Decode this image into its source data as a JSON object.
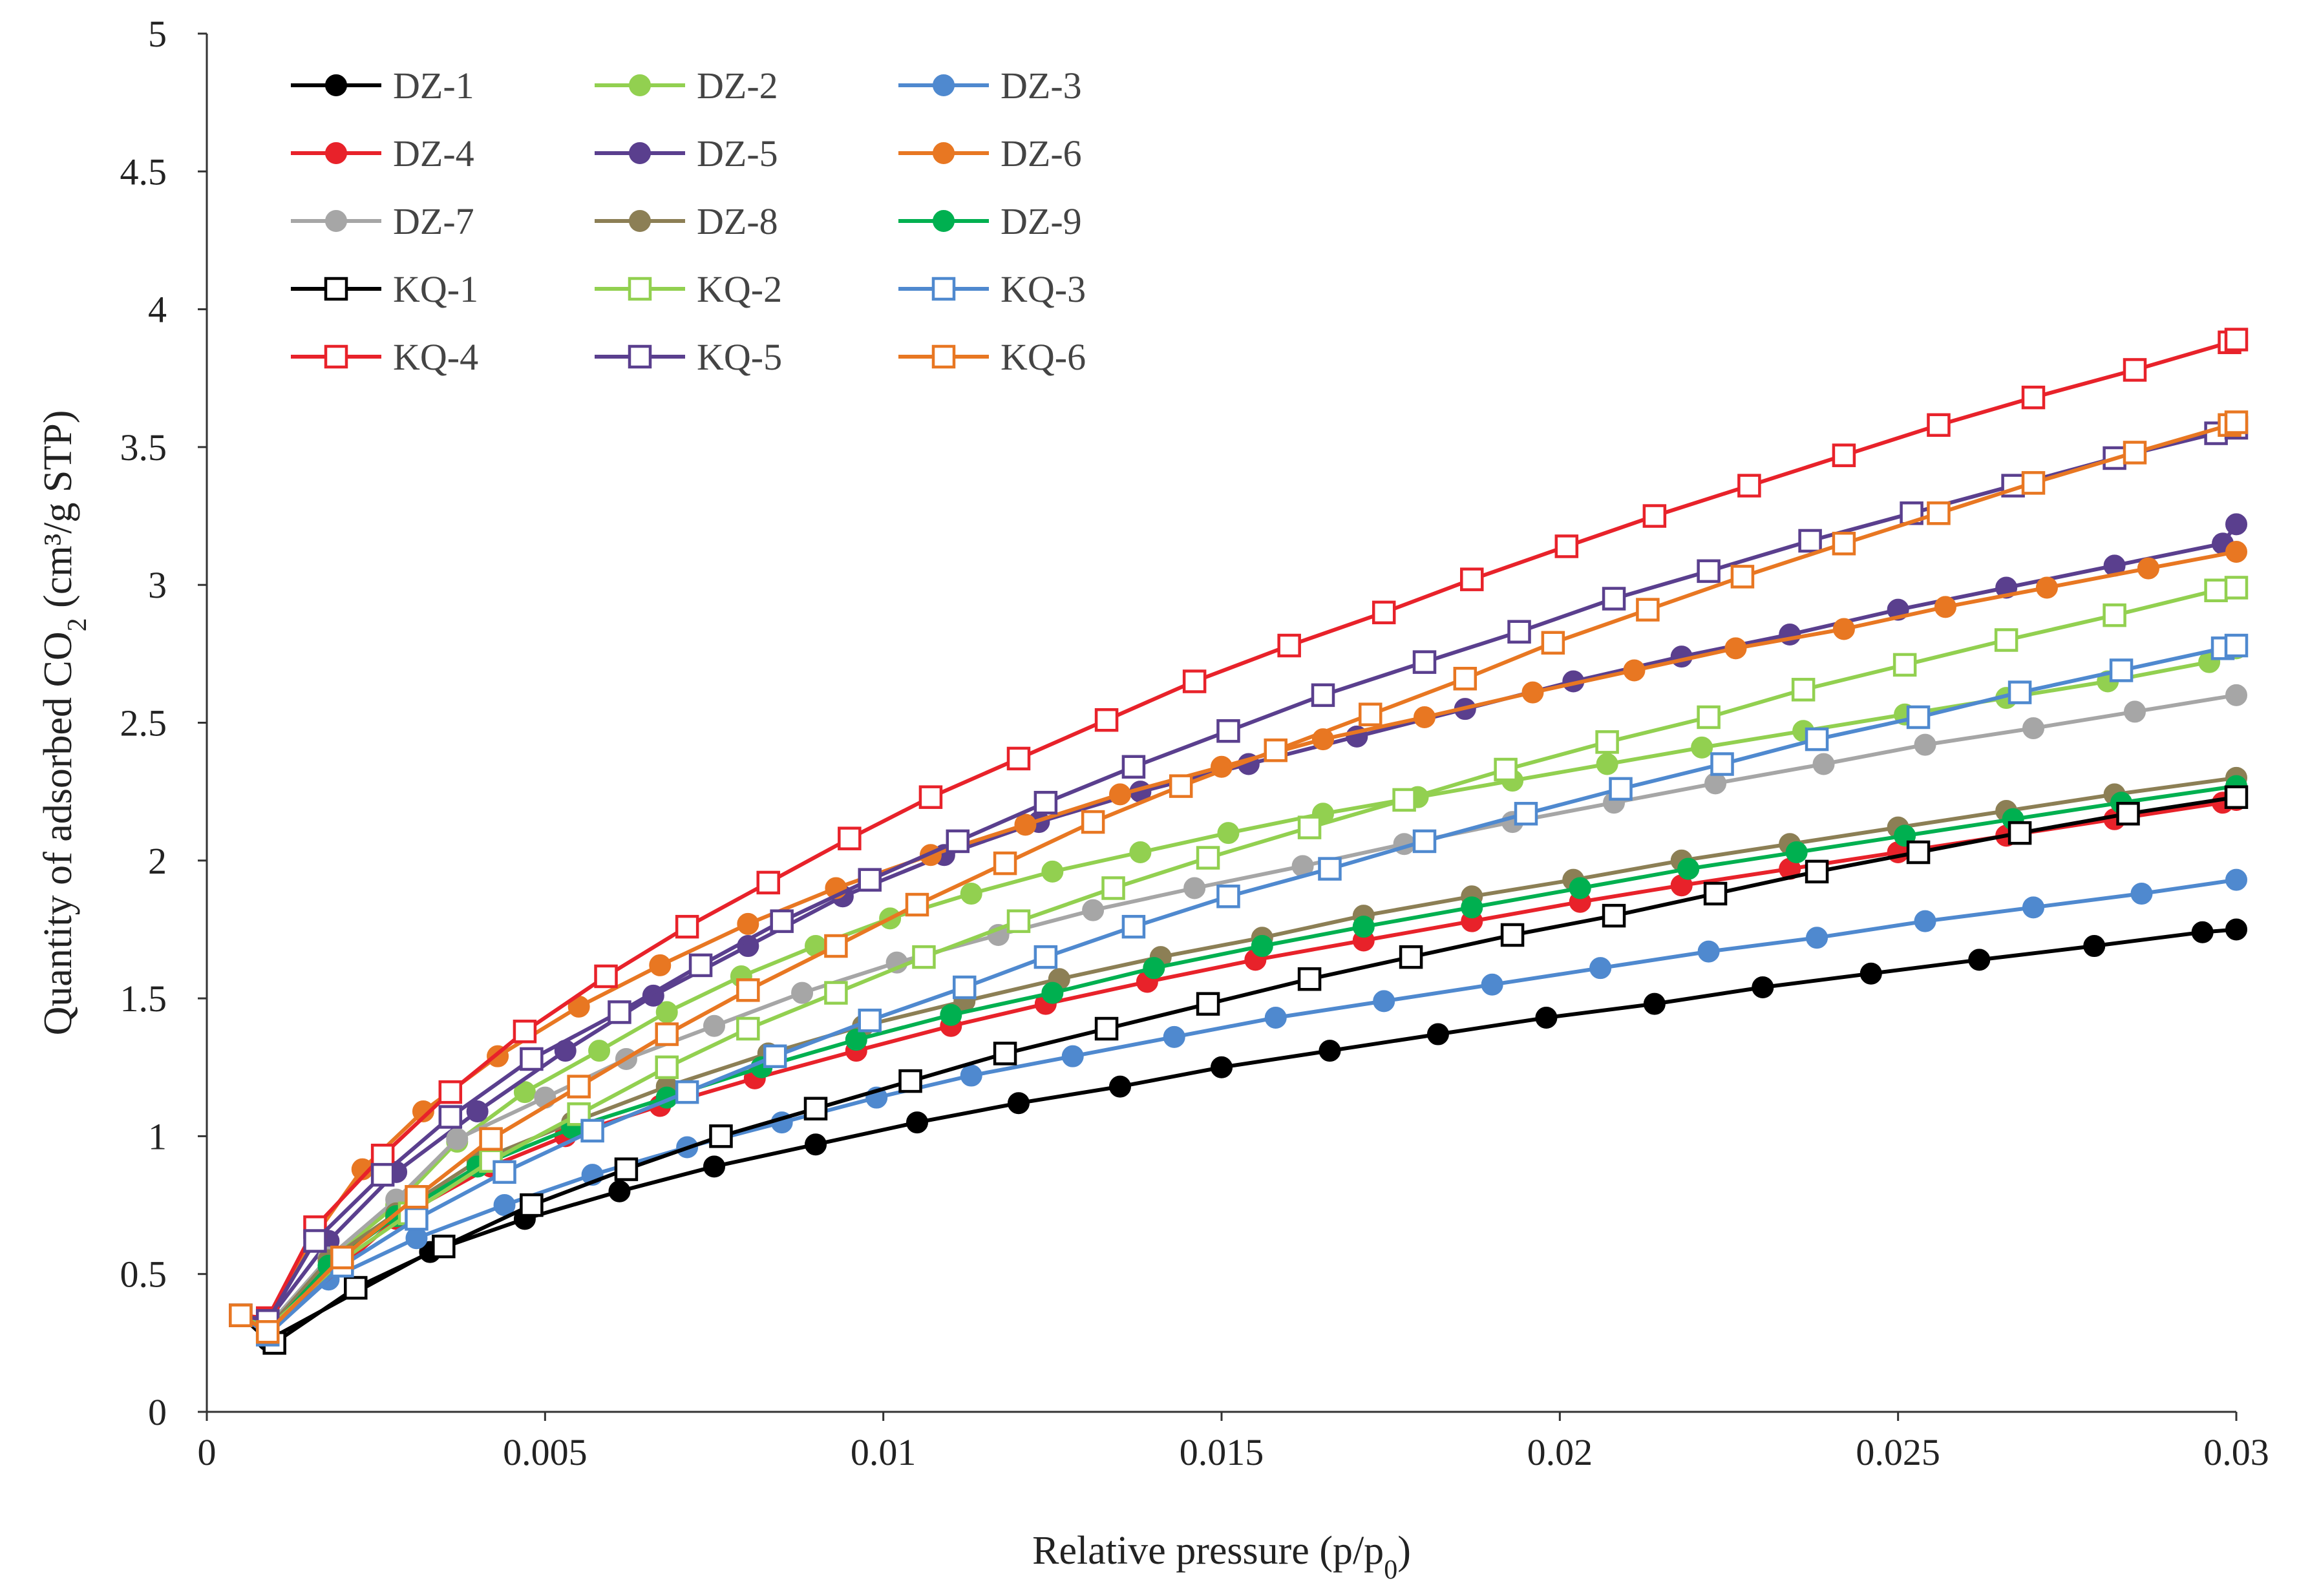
{
  "chart_data": {
    "type": "line",
    "title": "",
    "xlabel": "Relative pressure (p/p",
    "xlabel_sub": "0",
    "xlabel_end": ")",
    "ylabel": "Quantity of adsorbed CO",
    "ylabel_sub": "2",
    "ylabel_end": " (cm³/g STP)",
    "xlim": [
      0,
      0.03
    ],
    "ylim": [
      0,
      5
    ],
    "x_ticks": [
      "0",
      "0.005",
      "0.01",
      "0.015",
      "0.02",
      "0.025",
      "0.03"
    ],
    "y_ticks": [
      "0",
      "0.5",
      "1",
      "1.5",
      "2",
      "2.5",
      "3",
      "3.5",
      "4",
      "4.5",
      "5"
    ],
    "grid": false,
    "legend_position": "top-left",
    "series": [
      {
        "name": "DZ-1",
        "color": "#000000",
        "marker": "filled-circle",
        "x": [
          0.0005,
          0.0009,
          0.0033,
          0.0047,
          0.0061,
          0.0075,
          0.009,
          0.0105,
          0.012,
          0.0135,
          0.015,
          0.0166,
          0.0182,
          0.0198,
          0.0214,
          0.023,
          0.0246,
          0.0262,
          0.0279,
          0.0295,
          0.03
        ],
        "y": [
          0.35,
          0.26,
          0.58,
          0.7,
          0.8,
          0.89,
          0.97,
          1.05,
          1.12,
          1.18,
          1.25,
          1.31,
          1.37,
          1.43,
          1.48,
          1.54,
          1.59,
          1.64,
          1.69,
          1.74,
          1.75
        ]
      },
      {
        "name": "DZ-2",
        "color": "#92D050",
        "marker": "filled-circle",
        "x": [
          0.0005,
          0.0009,
          0.0018,
          0.0028,
          0.0037,
          0.0047,
          0.0058,
          0.0068,
          0.0079,
          0.009,
          0.0101,
          0.0113,
          0.0125,
          0.0138,
          0.0151,
          0.0165,
          0.0179,
          0.0193,
          0.0207,
          0.0221,
          0.0236,
          0.0251,
          0.0266,
          0.0281,
          0.0296,
          0.03
        ],
        "y": [
          0.35,
          0.3,
          0.55,
          0.75,
          0.98,
          1.16,
          1.31,
          1.45,
          1.58,
          1.69,
          1.79,
          1.88,
          1.96,
          2.03,
          2.1,
          2.17,
          2.23,
          2.29,
          2.35,
          2.41,
          2.47,
          2.53,
          2.59,
          2.65,
          2.72,
          2.77
        ]
      },
      {
        "name": "DZ-3",
        "color": "#4F89CF",
        "marker": "filled-circle",
        "x": [
          0.0005,
          0.0009,
          0.0018,
          0.0031,
          0.0044,
          0.0057,
          0.0071,
          0.0085,
          0.0099,
          0.0113,
          0.0128,
          0.0143,
          0.0158,
          0.0174,
          0.019,
          0.0206,
          0.0222,
          0.0238,
          0.0254,
          0.027,
          0.0286,
          0.03
        ],
        "y": [
          0.35,
          0.28,
          0.48,
          0.63,
          0.75,
          0.86,
          0.96,
          1.05,
          1.14,
          1.22,
          1.29,
          1.36,
          1.43,
          1.49,
          1.55,
          1.61,
          1.67,
          1.72,
          1.78,
          1.83,
          1.88,
          1.93
        ]
      },
      {
        "name": "DZ-4",
        "color": "#E8222A",
        "marker": "filled-circle",
        "x": [
          0.0005,
          0.0009,
          0.0028,
          0.0042,
          0.0053,
          0.0067,
          0.0081,
          0.0096,
          0.011,
          0.0124,
          0.0139,
          0.0155,
          0.0171,
          0.0187,
          0.0203,
          0.0218,
          0.0234,
          0.025,
          0.0266,
          0.0282,
          0.0298,
          0.03
        ],
        "y": [
          0.35,
          0.29,
          0.7,
          0.89,
          1.0,
          1.11,
          1.21,
          1.31,
          1.4,
          1.48,
          1.56,
          1.64,
          1.71,
          1.78,
          1.85,
          1.91,
          1.97,
          2.03,
          2.09,
          2.15,
          2.21,
          2.22
        ]
      },
      {
        "name": "DZ-5",
        "color": "#5A3F8E",
        "marker": "filled-circle",
        "x": [
          0.0005,
          0.0009,
          0.0018,
          0.0028,
          0.004,
          0.0053,
          0.0066,
          0.008,
          0.0094,
          0.0109,
          0.0123,
          0.0138,
          0.0154,
          0.017,
          0.0186,
          0.0202,
          0.0218,
          0.0234,
          0.025,
          0.0266,
          0.0282,
          0.0298,
          0.03
        ],
        "y": [
          0.35,
          0.33,
          0.62,
          0.87,
          1.09,
          1.31,
          1.51,
          1.69,
          1.87,
          2.02,
          2.14,
          2.25,
          2.35,
          2.45,
          2.55,
          2.65,
          2.74,
          2.82,
          2.91,
          2.99,
          3.07,
          3.15,
          3.22
        ]
      },
      {
        "name": "DZ-6",
        "color": "#E87722",
        "marker": "filled-circle",
        "x": [
          0.0005,
          0.0009,
          0.0016,
          0.0023,
          0.0032,
          0.0043,
          0.0055,
          0.0067,
          0.008,
          0.0093,
          0.0107,
          0.0121,
          0.0135,
          0.015,
          0.0165,
          0.018,
          0.0196,
          0.0211,
          0.0226,
          0.0242,
          0.0257,
          0.0272,
          0.0287,
          0.03
        ],
        "y": [
          0.35,
          0.34,
          0.64,
          0.88,
          1.09,
          1.29,
          1.47,
          1.62,
          1.77,
          1.9,
          2.02,
          2.13,
          2.24,
          2.34,
          2.44,
          2.52,
          2.61,
          2.69,
          2.77,
          2.84,
          2.92,
          2.99,
          3.06,
          3.12
        ]
      },
      {
        "name": "DZ-7",
        "color": "#A6A6A6",
        "marker": "filled-circle",
        "x": [
          0.0005,
          0.0009,
          0.0018,
          0.0028,
          0.0037,
          0.005,
          0.0062,
          0.0075,
          0.0088,
          0.0102,
          0.0117,
          0.0131,
          0.0146,
          0.0162,
          0.0177,
          0.0193,
          0.0208,
          0.0223,
          0.0239,
          0.0254,
          0.027,
          0.0285,
          0.03
        ],
        "y": [
          0.35,
          0.31,
          0.56,
          0.77,
          0.99,
          1.14,
          1.28,
          1.4,
          1.52,
          1.63,
          1.73,
          1.82,
          1.9,
          1.98,
          2.06,
          2.14,
          2.21,
          2.28,
          2.35,
          2.42,
          2.48,
          2.54,
          2.6
        ]
      },
      {
        "name": "DZ-8",
        "color": "#8C7F55",
        "marker": "filled-circle",
        "x": [
          0.0005,
          0.0009,
          0.0018,
          0.0028,
          0.004,
          0.0054,
          0.0068,
          0.0083,
          0.0097,
          0.0112,
          0.0126,
          0.0141,
          0.0156,
          0.0171,
          0.0187,
          0.0202,
          0.0218,
          0.0234,
          0.025,
          0.0266,
          0.0282,
          0.03
        ],
        "y": [
          0.35,
          0.3,
          0.55,
          0.72,
          0.91,
          1.05,
          1.18,
          1.3,
          1.4,
          1.49,
          1.57,
          1.65,
          1.72,
          1.8,
          1.87,
          1.93,
          2.0,
          2.06,
          2.12,
          2.18,
          2.24,
          2.3
        ]
      },
      {
        "name": "DZ-9",
        "color": "#00B050",
        "marker": "filled-circle",
        "x": [
          0.0005,
          0.0009,
          0.0018,
          0.0028,
          0.004,
          0.0054,
          0.0068,
          0.0082,
          0.0096,
          0.011,
          0.0125,
          0.014,
          0.0156,
          0.0171,
          0.0187,
          0.0203,
          0.0219,
          0.0235,
          0.0251,
          0.0267,
          0.0283,
          0.03
        ],
        "y": [
          0.35,
          0.29,
          0.53,
          0.71,
          0.89,
          1.03,
          1.14,
          1.25,
          1.35,
          1.44,
          1.52,
          1.61,
          1.69,
          1.76,
          1.83,
          1.9,
          1.97,
          2.03,
          2.09,
          2.15,
          2.21,
          2.27
        ]
      },
      {
        "name": "KQ-1",
        "color": "#000000",
        "marker": "open-square",
        "x": [
          0.0005,
          0.001,
          0.0022,
          0.0035,
          0.0048,
          0.0062,
          0.0076,
          0.009,
          0.0104,
          0.0118,
          0.0133,
          0.0148,
          0.0163,
          0.0178,
          0.0193,
          0.0208,
          0.0223,
          0.0238,
          0.0253,
          0.0268,
          0.0284,
          0.03
        ],
        "y": [
          0.35,
          0.25,
          0.45,
          0.6,
          0.75,
          0.88,
          1.0,
          1.1,
          1.2,
          1.3,
          1.39,
          1.48,
          1.57,
          1.65,
          1.73,
          1.8,
          1.88,
          1.96,
          2.03,
          2.1,
          2.17,
          2.23
        ]
      },
      {
        "name": "KQ-2",
        "color": "#92D050",
        "marker": "open-square",
        "x": [
          0.0005,
          0.0009,
          0.002,
          0.003,
          0.0042,
          0.0055,
          0.0068,
          0.008,
          0.0093,
          0.0106,
          0.012,
          0.0134,
          0.0148,
          0.0163,
          0.0177,
          0.0192,
          0.0207,
          0.0222,
          0.0236,
          0.0251,
          0.0266,
          0.0282,
          0.0297,
          0.03
        ],
        "y": [
          0.35,
          0.3,
          0.55,
          0.72,
          0.91,
          1.08,
          1.25,
          1.39,
          1.52,
          1.65,
          1.78,
          1.9,
          2.01,
          2.12,
          2.22,
          2.33,
          2.43,
          2.52,
          2.62,
          2.71,
          2.8,
          2.89,
          2.98,
          2.99
        ]
      },
      {
        "name": "KQ-3",
        "color": "#4F89CF",
        "marker": "open-square",
        "x": [
          0.0005,
          0.0009,
          0.002,
          0.0031,
          0.0044,
          0.0057,
          0.0071,
          0.0084,
          0.0098,
          0.0112,
          0.0124,
          0.0137,
          0.0151,
          0.0166,
          0.018,
          0.0195,
          0.0209,
          0.0224,
          0.0238,
          0.0253,
          0.0268,
          0.0283,
          0.0298,
          0.03
        ],
        "y": [
          0.35,
          0.28,
          0.53,
          0.7,
          0.87,
          1.02,
          1.16,
          1.29,
          1.42,
          1.54,
          1.65,
          1.76,
          1.87,
          1.97,
          2.07,
          2.17,
          2.26,
          2.35,
          2.44,
          2.52,
          2.61,
          2.69,
          2.77,
          2.78
        ]
      },
      {
        "name": "KQ-4",
        "color": "#E8222A",
        "marker": "open-square",
        "x": [
          0.0005,
          0.0009,
          0.0016,
          0.0026,
          0.0036,
          0.0047,
          0.0059,
          0.0071,
          0.0083,
          0.0095,
          0.0107,
          0.012,
          0.0133,
          0.0146,
          0.016,
          0.0174,
          0.0187,
          0.0201,
          0.0214,
          0.0228,
          0.0242,
          0.0256,
          0.027,
          0.0285,
          0.0299,
          0.03
        ],
        "y": [
          0.35,
          0.34,
          0.67,
          0.93,
          1.16,
          1.38,
          1.58,
          1.76,
          1.92,
          2.08,
          2.23,
          2.37,
          2.51,
          2.65,
          2.78,
          2.9,
          3.02,
          3.14,
          3.25,
          3.36,
          3.47,
          3.58,
          3.68,
          3.78,
          3.88,
          3.89
        ]
      },
      {
        "name": "KQ-5",
        "color": "#5A3F8E",
        "marker": "open-square",
        "x": [
          0.0005,
          0.0009,
          0.0016,
          0.0026,
          0.0036,
          0.0048,
          0.0061,
          0.0073,
          0.0085,
          0.0098,
          0.0111,
          0.0124,
          0.0137,
          0.0151,
          0.0165,
          0.018,
          0.0194,
          0.0208,
          0.0222,
          0.0237,
          0.0252,
          0.0267,
          0.0282,
          0.0297,
          0.03
        ],
        "y": [
          0.35,
          0.33,
          0.62,
          0.86,
          1.07,
          1.28,
          1.45,
          1.62,
          1.78,
          1.93,
          2.07,
          2.21,
          2.34,
          2.47,
          2.6,
          2.72,
          2.83,
          2.95,
          3.05,
          3.16,
          3.26,
          3.36,
          3.46,
          3.55,
          3.57
        ]
      },
      {
        "name": "KQ-6",
        "color": "#E87722",
        "marker": "open-square",
        "x": [
          0.0005,
          0.0009,
          0.002,
          0.0031,
          0.0042,
          0.0055,
          0.0068,
          0.008,
          0.0093,
          0.0105,
          0.0118,
          0.0131,
          0.0144,
          0.0158,
          0.0172,
          0.0186,
          0.0199,
          0.0213,
          0.0227,
          0.0242,
          0.0256,
          0.027,
          0.0285,
          0.0299,
          0.03
        ],
        "y": [
          0.35,
          0.29,
          0.56,
          0.78,
          0.99,
          1.18,
          1.37,
          1.53,
          1.69,
          1.84,
          1.99,
          2.14,
          2.27,
          2.4,
          2.53,
          2.66,
          2.79,
          2.91,
          3.03,
          3.15,
          3.26,
          3.37,
          3.48,
          3.58,
          3.59
        ]
      }
    ]
  }
}
